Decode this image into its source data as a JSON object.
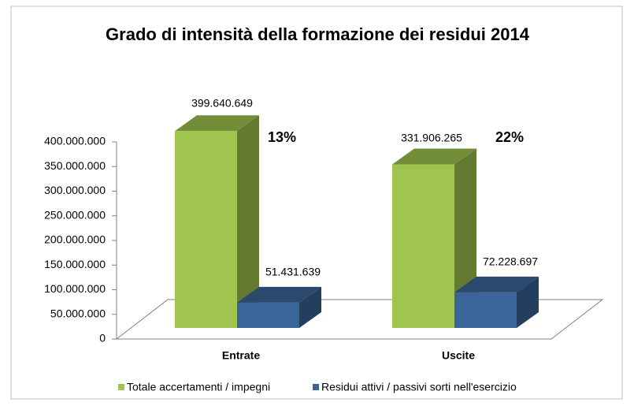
{
  "chart_data": {
    "type": "bar3d",
    "title": "Grado di intensità della formazione dei residui 2014",
    "categories": [
      "Entrate",
      "Uscite"
    ],
    "series": [
      {
        "name": "Totale accertamenti / impegni",
        "color": "#a0c54e",
        "values": [
          399640649,
          331906265
        ],
        "value_labels": [
          "399.640.649",
          "331.906.265"
        ]
      },
      {
        "name": "Residui attivi / passivi sorti nell'esercizio",
        "color": "#3a6598",
        "values": [
          51431639,
          72228697
        ],
        "value_labels": [
          "51.431.639",
          "72.228.697"
        ]
      }
    ],
    "annotations": [
      "13%",
      "22%"
    ],
    "ylim": [
      0,
      400000000
    ],
    "yticks": [
      0,
      {
        "value": 50000000,
        "label": "50.000.000"
      },
      {
        "value": 100000000,
        "label": "100.000.000"
      },
      {
        "value": 150000000,
        "label": "150.000.000"
      },
      {
        "value": 200000000,
        "label": "200.000.000"
      },
      {
        "value": 250000000,
        "label": "250.000.000"
      },
      {
        "value": 300000000,
        "label": "300.000.000"
      },
      {
        "value": 350000000,
        "label": "350.000.000"
      },
      {
        "value": 400000000,
        "label": "400.000.000"
      }
    ],
    "legend": "bottom"
  }
}
